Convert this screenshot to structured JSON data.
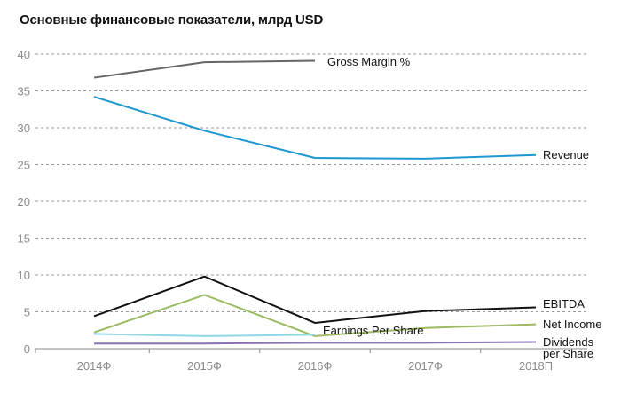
{
  "chart_data": {
    "type": "line",
    "title": "Основные финансовые показатели, млрд USD",
    "xlabel": "",
    "ylabel": "",
    "categories": [
      "2014Ф",
      "2015Ф",
      "2016Ф",
      "2017Ф",
      "2018П"
    ],
    "yticks": [
      "0",
      "5",
      "10",
      "15",
      "20",
      "25",
      "30",
      "35",
      "40"
    ],
    "ylim": [
      0,
      40
    ],
    "grid": "horizontal-dashed",
    "legend": "inline-labels-right",
    "series": [
      {
        "name": "Gross Margin %",
        "color": "#666666",
        "values": [
          36.8,
          38.9,
          39.1,
          null,
          null
        ]
      },
      {
        "name": "Revenue",
        "color": "#1e96d0",
        "values": [
          34.2,
          29.6,
          25.9,
          25.8,
          26.3
        ]
      },
      {
        "name": "EBITDA",
        "color": "#111111",
        "values": [
          4.4,
          9.8,
          3.5,
          5.1,
          5.6
        ]
      },
      {
        "name": "Net Income",
        "color": "#9dbb63",
        "values": [
          2.2,
          7.3,
          1.7,
          2.8,
          3.3
        ]
      },
      {
        "name": "Earnings Per Share",
        "color": "#8fd6e6",
        "values": [
          2.0,
          1.7,
          1.9,
          null,
          null
        ]
      },
      {
        "name": "Dividends per Share",
        "color": "#8a72b3",
        "values": [
          0.7,
          0.7,
          0.8,
          0.8,
          0.9
        ]
      }
    ]
  }
}
